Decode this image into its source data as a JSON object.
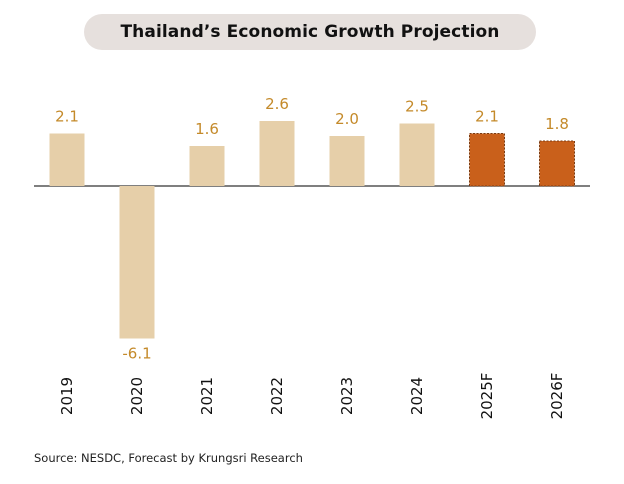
{
  "chart_data": {
    "type": "bar",
    "title": "Thailand’s Economic Growth Projection",
    "categories": [
      "2019",
      "2020",
      "2021",
      "2022",
      "2023",
      "2024",
      "2025F",
      "2026F"
    ],
    "values": [
      2.1,
      -6.1,
      1.6,
      2.6,
      2.0,
      2.5,
      2.1,
      1.8
    ],
    "value_labels": [
      "2.1",
      "-6.1",
      "1.6",
      "2.6",
      "2.0",
      "2.5",
      "2.1",
      "1.8"
    ],
    "forecast": [
      false,
      false,
      false,
      false,
      false,
      false,
      true,
      true
    ],
    "xlabel": "",
    "ylabel": "",
    "ylim": [
      -6.1,
      2.6
    ],
    "grid": false,
    "legend": "none",
    "x_tick_orientation": "vertical"
  },
  "colors": {
    "actual_bar": "#e6cfa9",
    "forecast_bar": "#c9601b",
    "value_label": "#c48a2a",
    "baseline": "#333333",
    "title_background": "#e6e0dd"
  },
  "source": "Source: NESDC, Forecast by Krungsri Research"
}
